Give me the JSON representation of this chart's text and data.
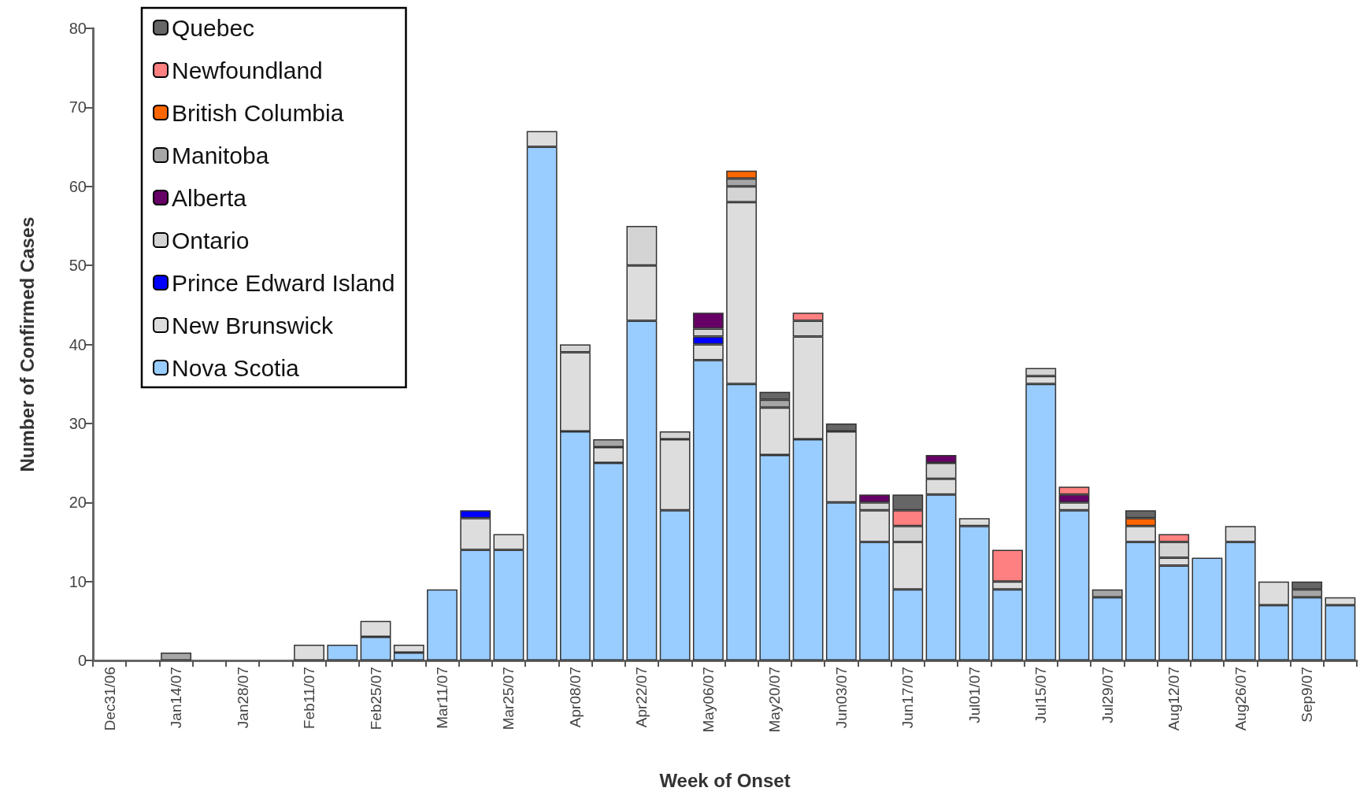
{
  "chart_data": {
    "type": "bar",
    "stacked": true,
    "xlabel": "Week of Onset",
    "ylabel": "Number of Confirmed Cases",
    "categories": [
      "Dec31/06",
      null,
      "Jan14/07",
      null,
      "Jan28/07",
      null,
      "Feb11/07",
      null,
      "Feb25/07",
      null,
      "Mar11/07",
      null,
      "Mar25/07",
      null,
      "Apr08/07",
      null,
      "Apr22/07",
      null,
      "May06/07",
      null,
      "May20/07",
      null,
      "Jun03/07",
      null,
      "Jun17/07",
      null,
      "Jul01/07",
      null,
      "Jul15/07",
      null,
      "Jul29/07",
      null,
      "Aug12/07",
      null,
      "Aug26/07",
      null,
      "Sep9/07",
      null
    ],
    "series": [
      {
        "name": "Nova Scotia",
        "color": "#99ccff",
        "values": [
          null,
          null,
          null,
          null,
          null,
          null,
          null,
          2,
          3,
          1,
          9,
          14,
          14,
          65,
          29,
          25,
          43,
          19,
          38,
          35,
          26,
          28,
          20,
          15,
          9,
          21,
          17,
          9,
          35,
          19,
          8,
          15,
          12,
          13,
          15,
          7,
          8,
          7
        ]
      },
      {
        "name": "New Brunswick",
        "color": "#dddddd",
        "values": [
          null,
          null,
          null,
          null,
          null,
          null,
          2,
          null,
          2,
          1,
          null,
          4,
          2,
          2,
          10,
          2,
          7,
          9,
          2,
          23,
          6,
          13,
          9,
          4,
          6,
          2,
          1,
          1,
          1,
          1,
          null,
          2,
          1,
          null,
          2,
          3,
          null,
          1
        ]
      },
      {
        "name": "Prince Edward Island",
        "color": "#0000ff",
        "values": [
          null,
          null,
          null,
          null,
          null,
          null,
          null,
          null,
          null,
          null,
          null,
          1,
          null,
          null,
          null,
          null,
          null,
          null,
          1,
          null,
          null,
          null,
          null,
          null,
          null,
          null,
          null,
          null,
          null,
          null,
          null,
          null,
          null,
          null,
          null,
          null,
          null,
          null
        ]
      },
      {
        "name": "Ontario",
        "color": "#d4d4d4",
        "values": [
          null,
          null,
          null,
          null,
          null,
          null,
          null,
          null,
          null,
          null,
          null,
          null,
          null,
          null,
          1,
          null,
          5,
          1,
          1,
          2,
          null,
          2,
          null,
          1,
          2,
          2,
          null,
          null,
          1,
          null,
          null,
          null,
          2,
          null,
          null,
          null,
          null,
          null
        ]
      },
      {
        "name": "Alberta",
        "color": "#660066",
        "values": [
          null,
          null,
          null,
          null,
          null,
          null,
          null,
          null,
          null,
          null,
          null,
          null,
          null,
          null,
          null,
          null,
          null,
          null,
          2,
          null,
          null,
          null,
          null,
          1,
          null,
          1,
          null,
          null,
          null,
          1,
          null,
          null,
          null,
          null,
          null,
          null,
          null,
          null
        ]
      },
      {
        "name": "Manitoba",
        "color": "#a6a6a6",
        "values": [
          null,
          null,
          1,
          null,
          null,
          null,
          null,
          null,
          null,
          null,
          null,
          null,
          null,
          null,
          null,
          1,
          null,
          null,
          null,
          1,
          1,
          null,
          null,
          null,
          null,
          null,
          null,
          null,
          null,
          null,
          1,
          null,
          null,
          null,
          null,
          null,
          1,
          null
        ]
      },
      {
        "name": "British Columbia",
        "color": "#ff6600",
        "values": [
          null,
          null,
          null,
          null,
          null,
          null,
          null,
          null,
          null,
          null,
          null,
          null,
          null,
          null,
          null,
          null,
          null,
          null,
          null,
          1,
          null,
          null,
          null,
          null,
          null,
          null,
          null,
          null,
          null,
          null,
          null,
          1,
          null,
          null,
          null,
          null,
          null,
          null
        ]
      },
      {
        "name": "Newfoundland",
        "color": "#ff8080",
        "values": [
          null,
          null,
          null,
          null,
          null,
          null,
          null,
          null,
          null,
          null,
          null,
          null,
          null,
          null,
          null,
          null,
          null,
          null,
          null,
          null,
          null,
          1,
          null,
          null,
          2,
          null,
          null,
          4,
          null,
          1,
          null,
          null,
          1,
          null,
          null,
          null,
          null,
          null
        ]
      },
      {
        "name": "Quebec",
        "color": "#666666",
        "values": [
          null,
          null,
          null,
          null,
          null,
          null,
          null,
          null,
          null,
          null,
          null,
          null,
          null,
          null,
          null,
          null,
          null,
          null,
          null,
          null,
          1,
          null,
          1,
          null,
          2,
          null,
          null,
          null,
          null,
          null,
          null,
          1,
          null,
          null,
          null,
          null,
          1,
          null
        ]
      }
    ],
    "ylim": [
      0,
      80
    ],
    "yticks": [
      0,
      10,
      20,
      30,
      40,
      50,
      60,
      70,
      80
    ],
    "grid": false,
    "legend": "top left"
  }
}
